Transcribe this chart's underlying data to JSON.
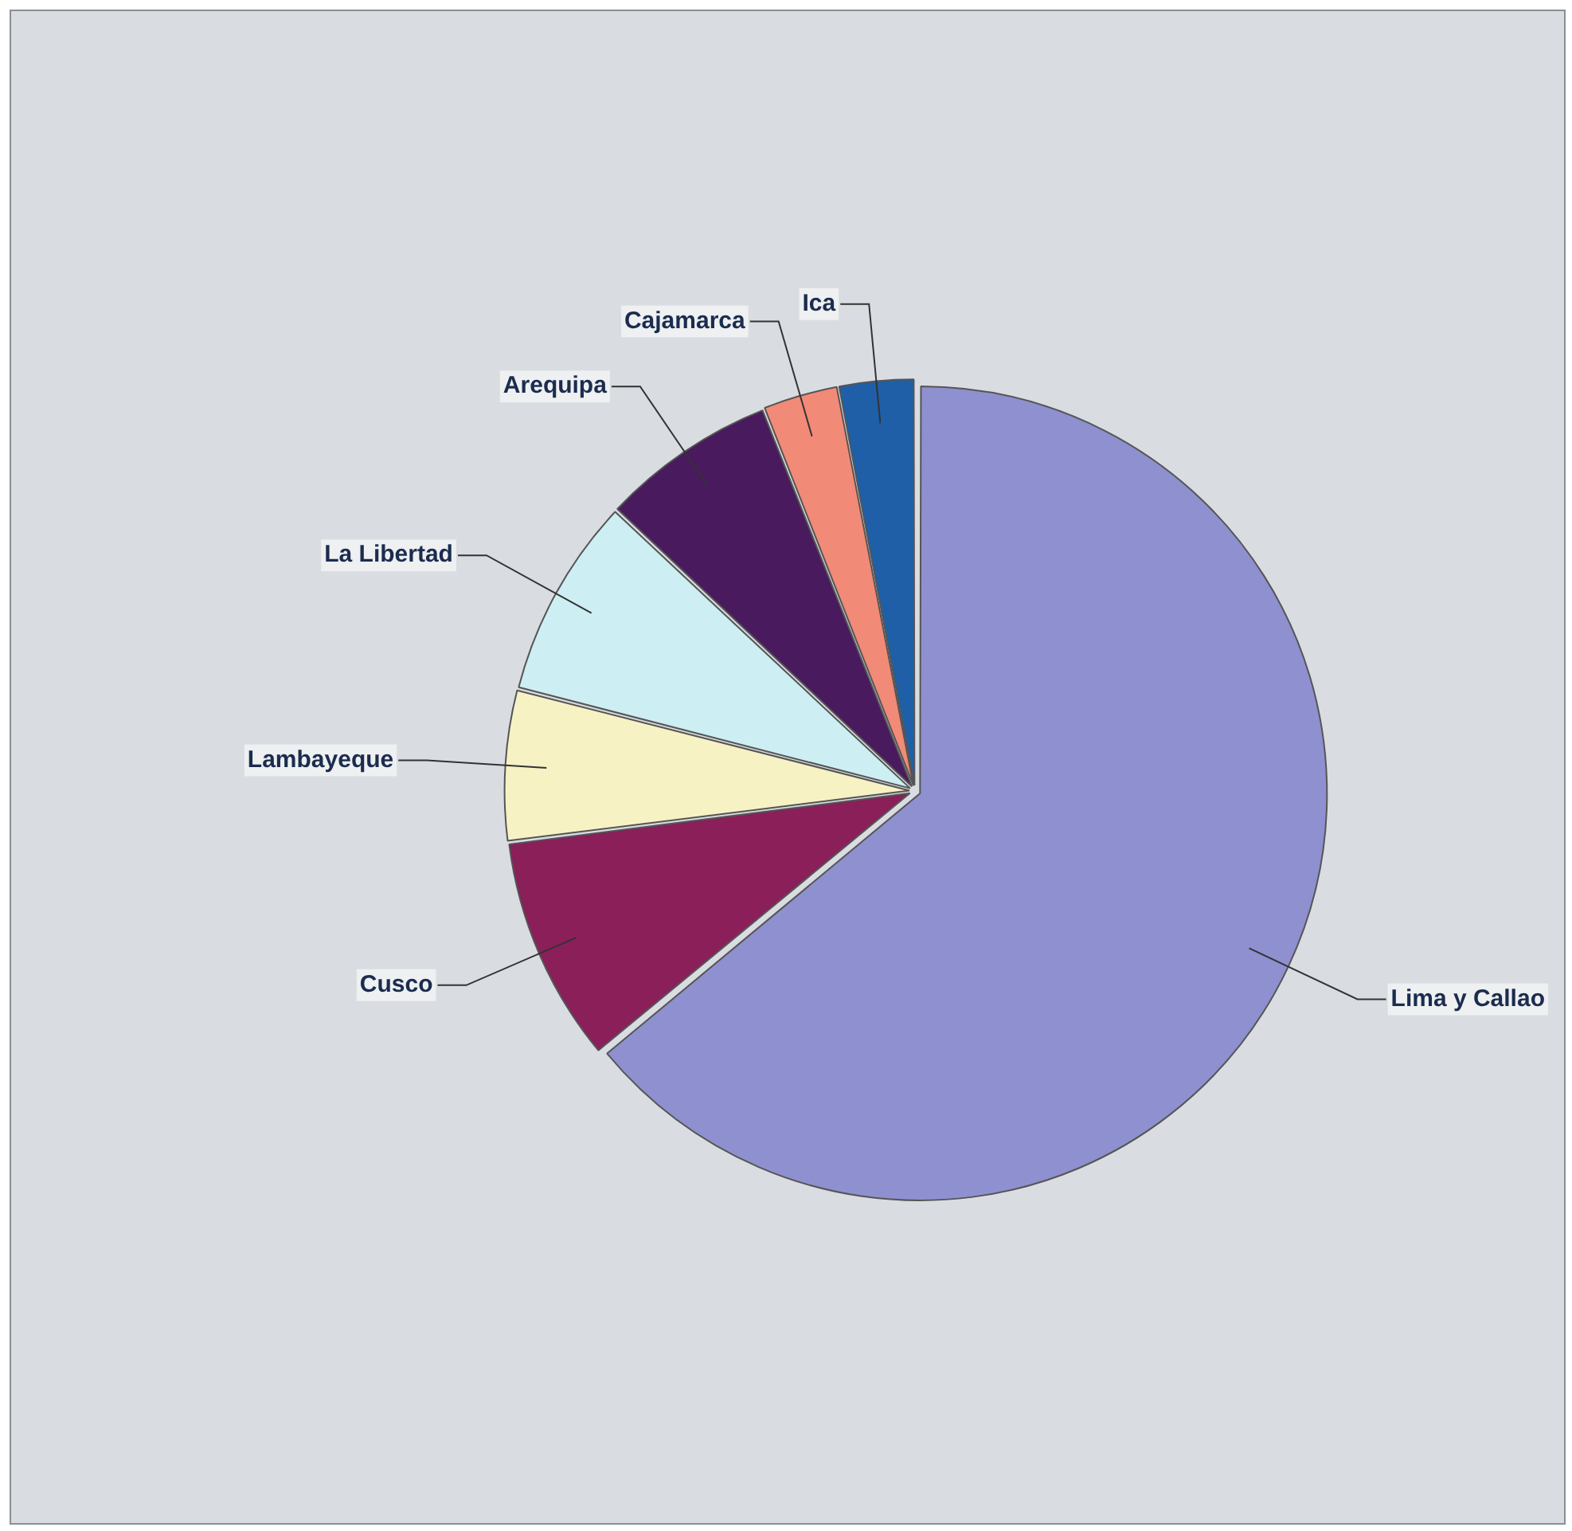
{
  "chart_data": {
    "type": "pie",
    "categories": [
      "Lima y Callao",
      "Cusco",
      "Lambayeque",
      "La Libertad",
      "Arequipa",
      "Cajamarca",
      "Ica"
    ],
    "values": [
      64,
      9,
      6,
      8,
      7,
      3,
      3
    ],
    "colors": [
      "#8f90d0",
      "#8a1f5a",
      "#f7f2c4",
      "#cdeef2",
      "#4a1a5e",
      "#f28a78",
      "#1f5fa8"
    ],
    "legend": false
  }
}
